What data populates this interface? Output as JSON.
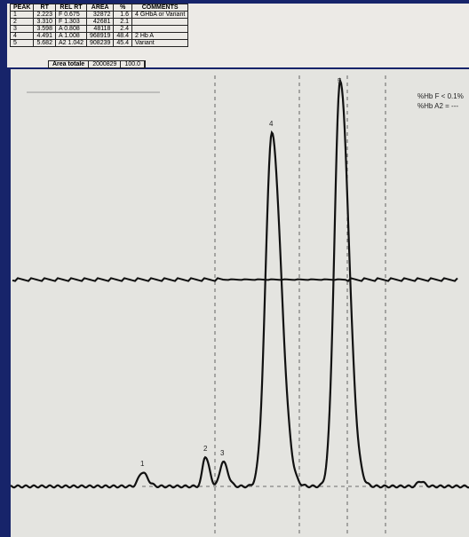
{
  "table": {
    "headers": [
      "PEAK",
      "RT",
      "REL RT",
      "AREA",
      "%",
      "COMMENTS"
    ],
    "rows": [
      [
        "1",
        "2.223",
        "F 0.675",
        "32872",
        "1.6",
        "4 GHbA or Variant"
      ],
      [
        "2",
        "3.310",
        "F 1.303",
        "42681",
        "2.1"
      ],
      [
        "3",
        "3.598",
        "A 0.808",
        "48118",
        "2.4"
      ],
      [
        "4",
        "4.491",
        "A 1.008",
        "968919",
        "48.4",
        "2 Hb A"
      ],
      [
        "5",
        "5.682",
        "A2 1.042",
        "908239",
        "45.4",
        "Variant"
      ]
    ],
    "total": {
      "label": "Area totale",
      "area": "2000829",
      "percent": "100.0"
    }
  },
  "peaks": [
    "1",
    "2",
    "3",
    "4",
    "5"
  ],
  "annotations": [
    "%Hb F < 0.1%",
    "%Hb A2 = ---"
  ]
}
